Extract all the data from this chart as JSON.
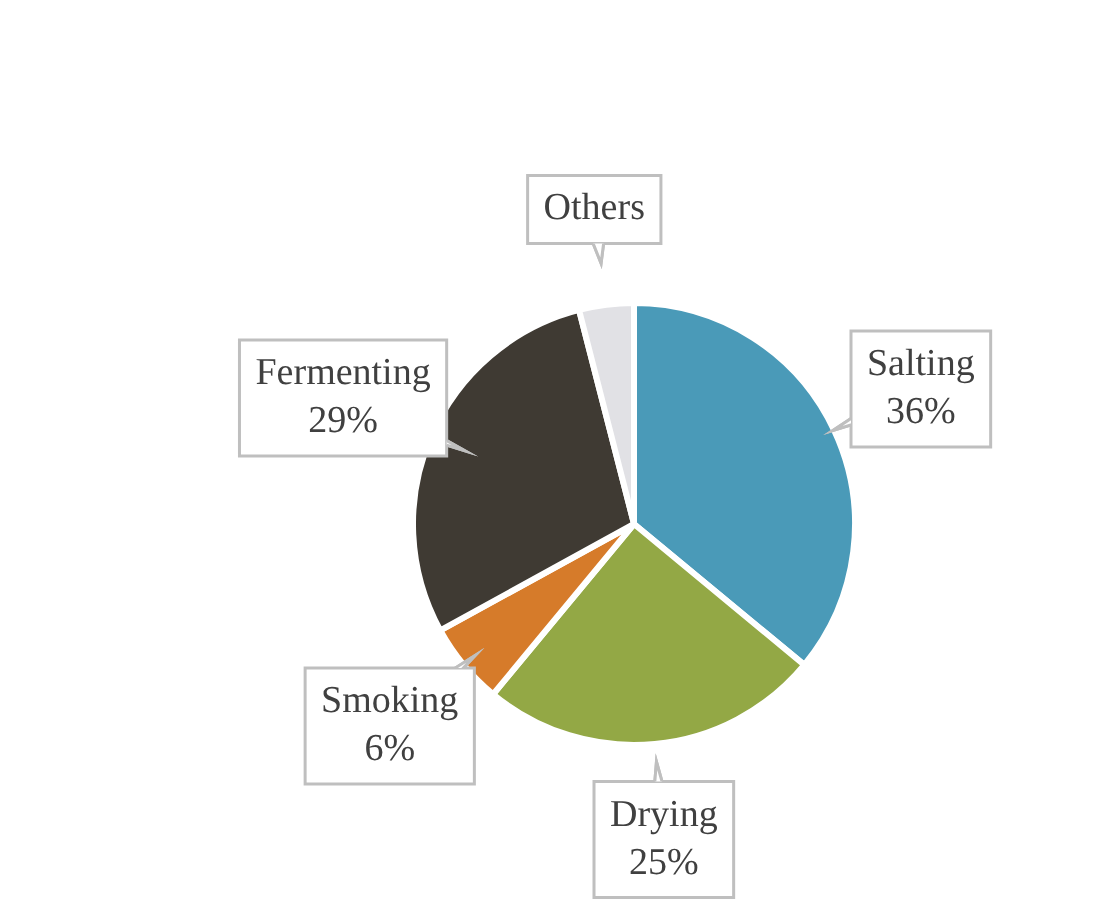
{
  "chart_data": {
    "type": "pie",
    "categories": [
      "Salting",
      "Drying",
      "Smoking",
      "Fermenting",
      "Others"
    ],
    "values": [
      36,
      25,
      6,
      29,
      4
    ],
    "colors": [
      "#4a9ab8",
      "#93a845",
      "#d67b2a",
      "#3f3a33",
      "#e1e1e5"
    ],
    "value_labels": [
      "36%",
      "25%",
      "6%",
      "29%",
      null
    ],
    "legend": false
  }
}
